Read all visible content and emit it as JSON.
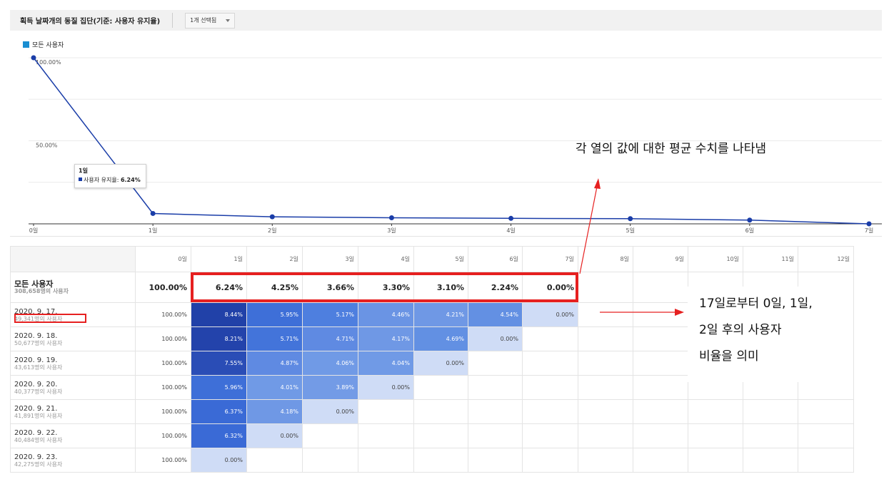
{
  "header": {
    "title": "획득 날짜개의 동질 집단(기준: 사용자 유지율)",
    "selector_label": "1개 선택됨"
  },
  "legend": {
    "label": "모든 사용자",
    "color": "#1a8ed1"
  },
  "tooltip": {
    "title": "1일",
    "label": "사용자 유지율:",
    "value": "6.24%"
  },
  "chart_data": {
    "type": "line",
    "categories": [
      "0일",
      "1일",
      "2일",
      "3일",
      "4일",
      "5일",
      "6일",
      "7일"
    ],
    "series": [
      {
        "name": "모든 사용자",
        "values": [
          100.0,
          6.24,
          4.25,
          3.66,
          3.3,
          3.1,
          2.24,
          0.0
        ]
      }
    ],
    "y_tick_labels": [
      "100.00%",
      "50.00%"
    ],
    "ylim": [
      0,
      100
    ],
    "line_color": "#1a3da8"
  },
  "annotations": {
    "average_note": "각 열의 값에 대한 평균 수치를 나타냄",
    "ratio_note": [
      "17일로부터 0일, 1일,",
      "2일 후의 사용자",
      "비율을 의미"
    ]
  },
  "table": {
    "columns": [
      "0일",
      "1일",
      "2일",
      "3일",
      "4일",
      "5일",
      "6일",
      "7일",
      "8일",
      "9일",
      "10일",
      "11일",
      "12일"
    ],
    "average_row": {
      "label": "모든 사용자",
      "sub": "308,658명의 사용자",
      "values": [
        "100.00%",
        "6.24%",
        "4.25%",
        "3.66%",
        "3.30%",
        "3.10%",
        "2.24%",
        "0.00%"
      ]
    },
    "rows": [
      {
        "label": "2020. 9. 17.",
        "sub": "49,341명의 사용자",
        "values": [
          "100.00%",
          "8.44%",
          "5.95%",
          "5.17%",
          "4.46%",
          "4.21%",
          "4.54%",
          "0.00%"
        ],
        "fills": [
          "",
          "#2141a8",
          "#3e6fd8",
          "#4e7fdf",
          "#6a94e4",
          "#6f98e5",
          "#6390e3",
          "#cfdcf6"
        ]
      },
      {
        "label": "2020. 9. 18.",
        "sub": "50,677명의 사용자",
        "values": [
          "100.00%",
          "8.21%",
          "5.71%",
          "4.71%",
          "4.17%",
          "4.69%",
          "0.00%"
        ],
        "fills": [
          "",
          "#2343ab",
          "#4374da",
          "#5f8ae2",
          "#6f98e5",
          "#6290e3",
          "#cfdcf6"
        ]
      },
      {
        "label": "2020. 9. 19.",
        "sub": "43,613명의 사용자",
        "values": [
          "100.00%",
          "7.55%",
          "4.87%",
          "4.06%",
          "4.04%",
          "0.00%"
        ],
        "fills": [
          "",
          "#2a4db6",
          "#5f8ae2",
          "#709ae6",
          "#709ae6",
          "#cfdcf6"
        ]
      },
      {
        "label": "2020. 9. 20.",
        "sub": "40,377명의 사용자",
        "values": [
          "100.00%",
          "5.96%",
          "4.01%",
          "3.89%",
          "0.00%"
        ],
        "fills": [
          "",
          "#3e6fd8",
          "#709ae6",
          "#739be6",
          "#cfdcf6"
        ]
      },
      {
        "label": "2020. 9. 21.",
        "sub": "41,891명의 사용자",
        "values": [
          "100.00%",
          "6.37%",
          "4.18%",
          "0.00%"
        ],
        "fills": [
          "",
          "#3a6ad6",
          "#6f98e5",
          "#cfdcf6"
        ]
      },
      {
        "label": "2020. 9. 22.",
        "sub": "40,484명의 사용자",
        "values": [
          "100.00%",
          "6.32%",
          "0.00%"
        ],
        "fills": [
          "",
          "#3a6ad6",
          "#cfdcf6"
        ]
      },
      {
        "label": "2020. 9. 23.",
        "sub": "42,275명의 사용자",
        "values": [
          "100.00%",
          "0.00%"
        ],
        "fills": [
          "",
          "#cfdcf6"
        ]
      }
    ]
  },
  "highlight_color": "#e62020"
}
